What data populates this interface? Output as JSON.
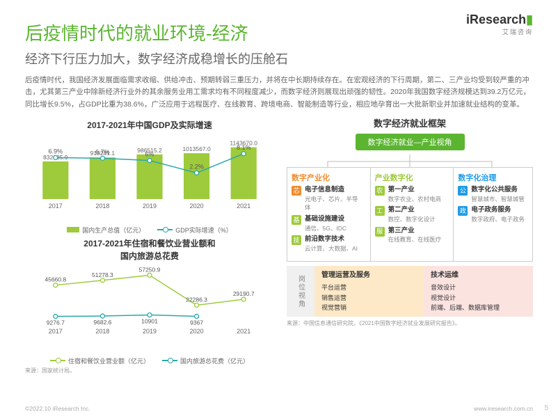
{
  "logo": {
    "text_pre": "iResearch",
    "dot": "",
    "sub": "艾瑞咨询"
  },
  "title": "后疫情时代的就业环境-经济",
  "subtitle": "经济下行压力加大，数字经济成稳增长的压舱石",
  "body": "后疫情时代，我国经济发展面临需求收缩、供给冲击、预期转弱三重压力，并将在中长期持续存在。在宏观经济的下行周期，第二、三产业均受到较严重的冲击，尤其第三产业中除新经济行业外的其余服务业用工需求均有不同程度减少，而数字经济则展现出顽强的韧性。2020年我国数字经济规模达到39.2万亿元，同比增长9.5%，占GDP比重为38.6%，广泛应用于远程医疗、在线教育、跨境电商、智能制造等行业，相应地孕育出一大批新职业并加速就业结构的变革。",
  "chart1": {
    "title": "2017-2021年中国GDP及实际增速",
    "categories": [
      "2017",
      "2018",
      "2019",
      "2020",
      "2021"
    ],
    "bars": [
      832035.9,
      919281.1,
      986515.2,
      1013567.0,
      1143670.0
    ],
    "line": [
      6.9,
      6.7,
      6.0,
      2.2,
      8.1
    ],
    "bar_color": "#9dcb3b",
    "line_color": "#2aa8a8",
    "y_bar_max": 1200000,
    "y_line_max": 10,
    "legend_bar": "国内生产总值（亿元）",
    "legend_line": "GDP实际增速（%）"
  },
  "chart2": {
    "title1": "2017-2021年住宿和餐饮业营业额和",
    "title2": "国内旅游总花费",
    "categories": [
      "2017",
      "2018",
      "2019",
      "2020",
      "2021"
    ],
    "series_a": {
      "name": "住宿和餐饮业营业额（亿元）",
      "values": [
        45660.8,
        51278.3,
        57250.9,
        22286.3,
        29190.7
      ],
      "color": "#9dcb3b"
    },
    "series_b": {
      "name": "国内旅游总花费（亿元）",
      "values": [
        9276.7,
        9682.6,
        10901.0,
        9367.0,
        null
      ],
      "color": "#2aa8a8",
      "extra_label_2021": null
    },
    "y_max": 60000
  },
  "source_left": "来源：国家统计局。",
  "framework": {
    "title": "数字经济就业框架",
    "root": "数字经济就业—产业视角",
    "cols": [
      {
        "title": "数字产业化",
        "color": "#f08c2e",
        "items": [
          {
            "icon": "芯",
            "ic_bg": "#f08c2e",
            "head": "电子信息制造",
            "sub": "光电子、芯片、半导体"
          },
          {
            "icon": "基",
            "ic_bg": "#9dcb3b",
            "head": "基础设施建设",
            "sub": "通信、5G、IDC"
          },
          {
            "icon": "技",
            "ic_bg": "#9dcb3b",
            "head": "前沿数字技术",
            "sub": "云计算、大数据、AI"
          }
        ]
      },
      {
        "title": "产业数字化",
        "color": "#9dcb3b",
        "items": [
          {
            "icon": "农",
            "ic_bg": "#9dcb3b",
            "head": "第一产业",
            "sub": "数字农业、农村电商"
          },
          {
            "icon": "工",
            "ic_bg": "#9dcb3b",
            "head": "第二产业",
            "sub": "数控、数字化设计"
          },
          {
            "icon": "服",
            "ic_bg": "#9dcb3b",
            "head": "第三产业",
            "sub": "在线教育、在线医疗"
          }
        ]
      },
      {
        "title": "数字化治理",
        "color": "#1e9be8",
        "items": [
          {
            "icon": "公",
            "ic_bg": "#1e9be8",
            "head": "数字化公共服务",
            "sub": "智慧城市、智慧城管"
          },
          {
            "icon": "政",
            "ic_bg": "#1e9be8",
            "head": "电子政务服务",
            "sub": "数字政府、电子政务"
          }
        ]
      }
    ],
    "position_label": "岗位视角",
    "pos_blocks": [
      {
        "title": "管理运营及服务",
        "bg": "#fde9c8",
        "lines": [
          "平台运营",
          "销售运营",
          "视觉营销"
        ]
      },
      {
        "title": "技术运维",
        "bg": "#fbe3e0",
        "lines": [
          "音效设计",
          "视觉设计",
          "前端、后端、数据库管理"
        ]
      }
    ],
    "source": "来源：中国信息通信研究院，《2021中国数字经济就业发展研究报告》。"
  },
  "footer": {
    "copyright": "©2022.10 iResearch Inc.",
    "site": "www.iresearch.com.cn",
    "page": "5"
  }
}
